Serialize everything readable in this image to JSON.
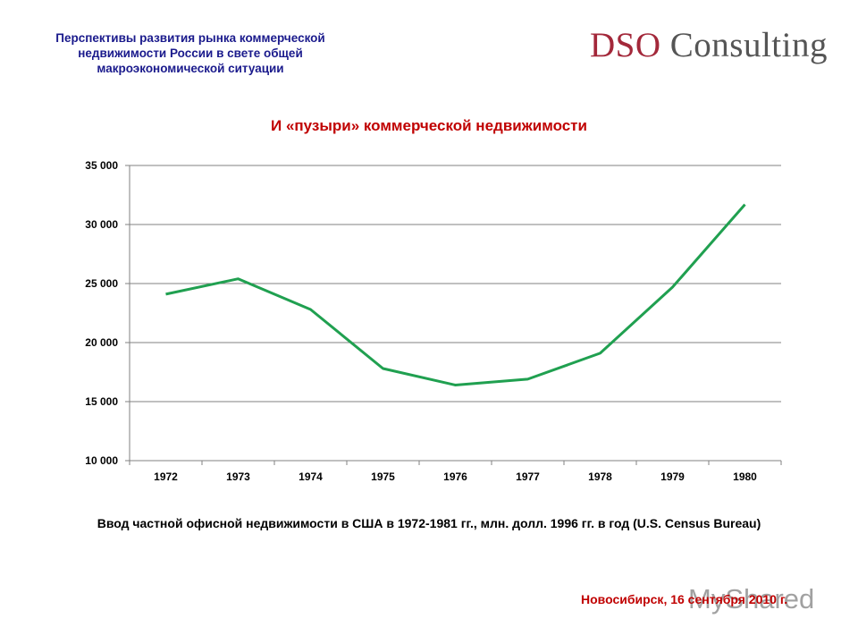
{
  "header": {
    "title_lines": [
      "Перспективы развития рынка коммерческой",
      "недвижимости России в свете общей",
      "макроэкономической ситуации"
    ],
    "logo_part1": "DSO",
    "logo_part2": " Consulting"
  },
  "chart_title": "И «пузыри» коммерческой недвижимости",
  "caption": "Ввод частной офисной недвижимости в США в 1972-1981 гг., млн. долл. 1996 гг.  в год (U.S. Census Bureau)",
  "footer": "Новосибирск, 16 сентября 2010 г.",
  "watermark": "MyShared",
  "colors": {
    "line": "#20a050",
    "title": "#c00000",
    "header": "#1a1a8c",
    "grid": "#808080"
  },
  "chart_data": {
    "type": "line",
    "title": "И «пузыри» коммерческой недвижимости",
    "xlabel": "",
    "ylabel": "",
    "categories": [
      "1972",
      "1973",
      "1974",
      "1975",
      "1976",
      "1977",
      "1978",
      "1979",
      "1980"
    ],
    "series": [
      {
        "name": "Ввод частной офисной недвижимости, млн. долл. 1996 г.",
        "values": [
          24100,
          25400,
          22800,
          17800,
          16400,
          16900,
          19100,
          24700,
          31700
        ]
      }
    ],
    "ylim": [
      10000,
      35000
    ],
    "yticks": [
      10000,
      15000,
      20000,
      25000,
      30000,
      35000
    ],
    "ytick_labels": [
      "10 000",
      "15 000",
      "20 000",
      "25 000",
      "30 000",
      "35 000"
    ],
    "grid": true,
    "legend": "none"
  }
}
